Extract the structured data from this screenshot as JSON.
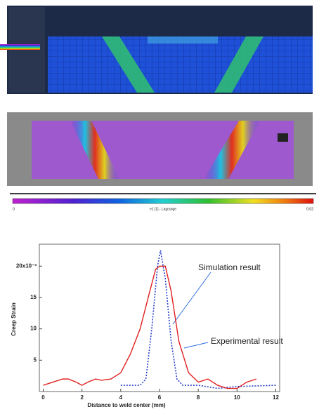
{
  "colorbar": {
    "min_label": "0",
    "title": "e1 [1] - Lagrange",
    "max_label": "0.02"
  },
  "chart_data": {
    "type": "line",
    "x_label": "Distance to weld center (mm)",
    "y_label": "Creep Strain",
    "xlim": [
      -0.2,
      12.2
    ],
    "ylim": [
      0,
      23.5
    ],
    "xticks": [
      0,
      2,
      4,
      6,
      8,
      10,
      12
    ],
    "yticks": [
      5,
      10,
      15,
      {
        "value": 20,
        "label": "20x10⁻³"
      }
    ],
    "series": [
      {
        "name": "Simulation result",
        "color": "#2a3fc8",
        "style": "dotted",
        "x": [
          4,
          4.5,
          5,
          5.3,
          5.6,
          5.9,
          6.05,
          6.3,
          6.6,
          6.9,
          7.2,
          8,
          9,
          10,
          12
        ],
        "values": [
          1,
          1,
          1,
          2,
          10,
          20,
          22.5,
          18,
          8,
          2,
          1,
          1,
          0.5,
          0.8,
          1
        ]
      },
      {
        "name": "Experimental result",
        "color": "#e02020",
        "style": "solid",
        "x": [
          0,
          0.5,
          1,
          1.3,
          1.7,
          2,
          2.3,
          2.7,
          3,
          3.5,
          4,
          4.5,
          5,
          5.5,
          5.8,
          6,
          6.3,
          6.6,
          7,
          7.5,
          8,
          8.5,
          9,
          9.5,
          10,
          10.5,
          11
        ],
        "values": [
          1,
          1.5,
          2,
          2,
          1.5,
          1,
          1.5,
          2,
          1.8,
          2,
          3,
          6,
          10,
          16,
          19.5,
          20,
          20,
          16,
          8,
          3,
          1.5,
          2,
          1,
          0.5,
          0.5,
          1.5,
          2
        ]
      }
    ]
  }
}
